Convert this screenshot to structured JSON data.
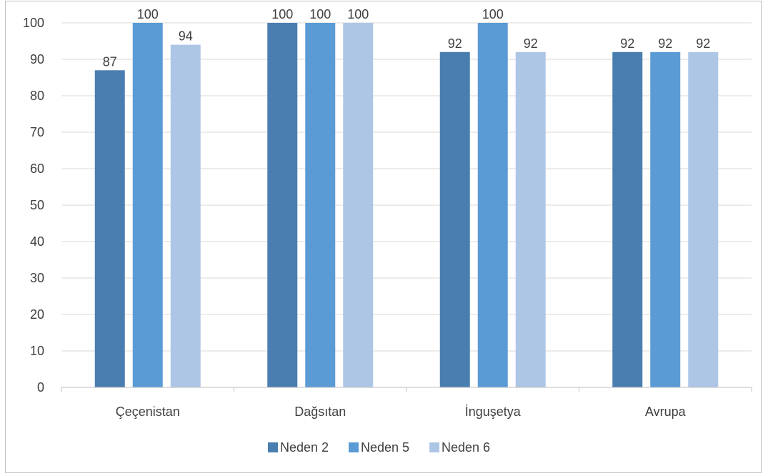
{
  "chart_data": {
    "type": "bar",
    "categories": [
      "Çeçenistan",
      "Dağsıtan",
      "İnguşetya",
      "Avrupa"
    ],
    "series": [
      {
        "name": "Neden 2",
        "color": "#4a7eb0",
        "values": [
          87,
          100,
          92,
          92
        ]
      },
      {
        "name": "Neden 5",
        "color": "#5b9bd5",
        "values": [
          100,
          100,
          100,
          92
        ]
      },
      {
        "name": "Neden 6",
        "color": "#aec6e6",
        "values": [
          94,
          100,
          92,
          92
        ]
      }
    ],
    "title": "",
    "xlabel": "",
    "ylabel": "",
    "ylim": [
      0,
      100
    ],
    "yticks": [
      0,
      10,
      20,
      30,
      40,
      50,
      60,
      70,
      80,
      90,
      100
    ],
    "grid": true,
    "legend": "bottom"
  }
}
